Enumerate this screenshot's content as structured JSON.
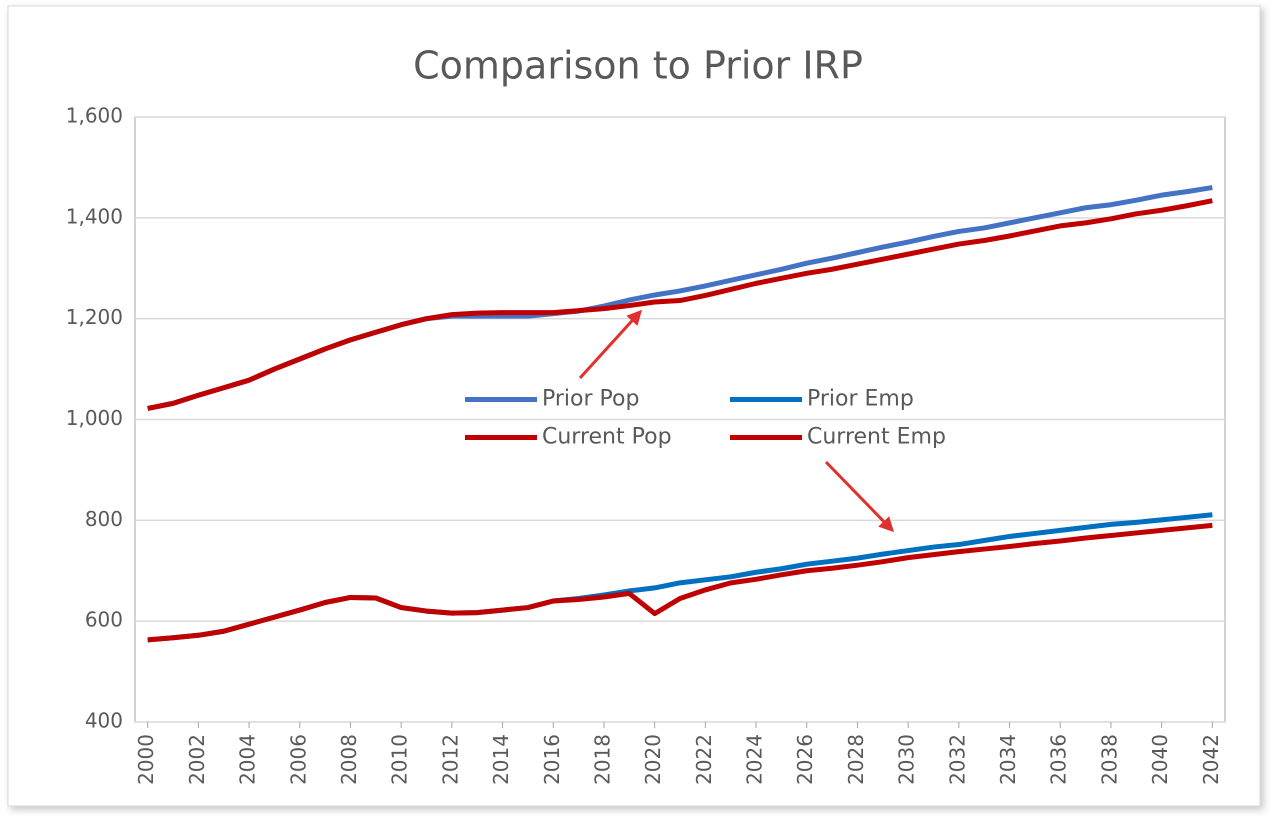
{
  "chart_data": {
    "type": "line",
    "title": "Comparison to Prior IRP",
    "x": [
      2000,
      2001,
      2002,
      2003,
      2004,
      2005,
      2006,
      2007,
      2008,
      2009,
      2010,
      2011,
      2012,
      2013,
      2014,
      2015,
      2016,
      2017,
      2018,
      2019,
      2020,
      2021,
      2022,
      2023,
      2024,
      2025,
      2026,
      2027,
      2028,
      2029,
      2030,
      2031,
      2032,
      2033,
      2034,
      2035,
      2036,
      2037,
      2038,
      2039,
      2040,
      2041,
      2042
    ],
    "xlim": [
      1999.5,
      2042.5
    ],
    "xticks": [
      2000,
      2002,
      2004,
      2006,
      2008,
      2010,
      2012,
      2014,
      2016,
      2018,
      2020,
      2022,
      2024,
      2026,
      2028,
      2030,
      2032,
      2034,
      2036,
      2038,
      2040,
      2042
    ],
    "ylim": [
      400,
      1600
    ],
    "yticks": [
      400,
      600,
      800,
      {
        "value": 1000,
        "label": "1,000"
      },
      {
        "value": 1200,
        "label": "1,200"
      },
      {
        "value": 1400,
        "label": "1,400"
      },
      {
        "value": 1600,
        "label": "1,600"
      }
    ],
    "grid": true,
    "legend": "center",
    "series": [
      {
        "name": "Prior Pop",
        "color": "#4472c4",
        "values": [
          1022,
          1032,
          1048,
          1063,
          1078,
          1100,
          1120,
          1140,
          1158,
          1173,
          1188,
          1200,
          1205,
          1205,
          1205,
          1205,
          1210,
          1215,
          1225,
          1237,
          1247,
          1255,
          1265,
          1276,
          1287,
          1298,
          1310,
          1320,
          1331,
          1342,
          1352,
          1363,
          1373,
          1380,
          1390,
          1400,
          1410,
          1420,
          1426,
          1435,
          1445,
          1452,
          1460
        ]
      },
      {
        "name": "Prior Emp",
        "color": "#0070c0",
        "values": [
          563,
          567,
          572,
          580,
          594,
          608,
          622,
          637,
          647,
          646,
          627,
          620,
          616,
          617,
          622,
          627,
          640,
          645,
          652,
          660,
          666,
          676,
          682,
          688,
          697,
          704,
          713,
          719,
          725,
          733,
          740,
          747,
          752,
          760,
          768,
          774,
          780,
          786,
          792,
          796,
          801,
          806,
          811
        ]
      },
      {
        "name": "Current Pop",
        "color": "#c00000",
        "values": [
          1022,
          1032,
          1048,
          1063,
          1078,
          1100,
          1120,
          1140,
          1158,
          1173,
          1188,
          1200,
          1208,
          1211,
          1212,
          1212,
          1212,
          1216,
          1220,
          1226,
          1233,
          1236,
          1246,
          1258,
          1270,
          1280,
          1290,
          1298,
          1308,
          1318,
          1328,
          1338,
          1348,
          1355,
          1364,
          1374,
          1384,
          1390,
          1398,
          1408,
          1415,
          1424,
          1434
        ]
      },
      {
        "name": "Current Emp",
        "color": "#c00000",
        "values": [
          563,
          567,
          572,
          580,
          594,
          608,
          622,
          637,
          647,
          646,
          627,
          620,
          616,
          617,
          622,
          627,
          640,
          643,
          648,
          655,
          615,
          645,
          662,
          676,
          683,
          692,
          700,
          705,
          711,
          718,
          726,
          732,
          738,
          743,
          748,
          754,
          759,
          765,
          770,
          775,
          780,
          785,
          790
        ]
      }
    ]
  }
}
